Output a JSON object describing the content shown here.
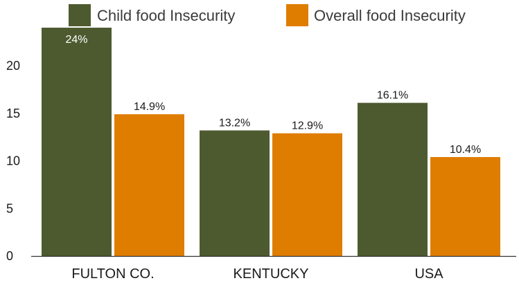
{
  "chart_data": {
    "type": "bar",
    "title": "",
    "xlabel": "",
    "ylabel": "",
    "categories": [
      "FULTON CO.",
      "KENTUCKY",
      "USA"
    ],
    "series": [
      {
        "name": "Child food Insecurity",
        "color": "#4d5a2f",
        "values": [
          24,
          13.2,
          16.1
        ],
        "labels": [
          "24%",
          "13.2%",
          "16.1%"
        ]
      },
      {
        "name": "Overall food Insecurity",
        "color": "#df7d00",
        "values": [
          14.9,
          12.9,
          10.4
        ],
        "labels": [
          "14.9%",
          "12.9%",
          "10.4%"
        ]
      }
    ],
    "yticks": [
      "0",
      "5",
      "10",
      "15",
      "20"
    ],
    "ylim": [
      0,
      25
    ],
    "grid": false,
    "legend_position": "top"
  }
}
